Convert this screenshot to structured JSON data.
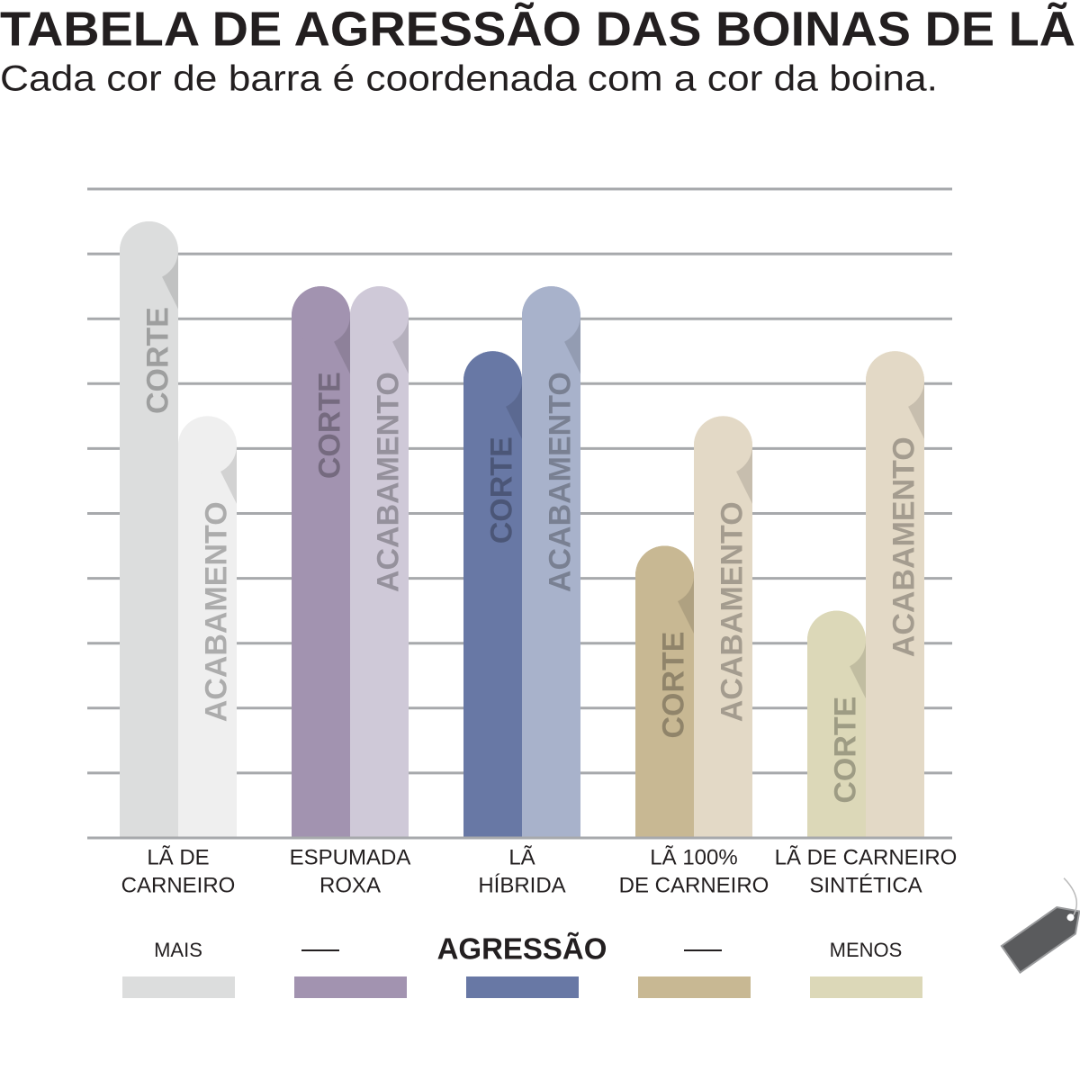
{
  "chart_data": {
    "type": "bar",
    "title": "TABELA DE AGRESSÃO DAS BOINAS DE LÃ",
    "subtitle": "Cada cor de barra é coordenada com a cor da boina.",
    "categories": [
      [
        "LÃ DE",
        "CARNEIRO"
      ],
      [
        "ESPUMADA",
        "ROXA"
      ],
      [
        "LÃ",
        "HÍBRIDA"
      ],
      [
        "LÃ 100%",
        "DE CARNEIRO"
      ],
      [
        "LÃ DE CARNEIRO",
        "SINTÉTICA"
      ]
    ],
    "series": [
      {
        "name": "CORTE",
        "colors": [
          "#dcdddd",
          "#a293b0",
          "#6878a5",
          "#c8b893",
          "#dcd8b8"
        ],
        "values": [
          9.5,
          8.5,
          7.5,
          4.5,
          3.5
        ]
      },
      {
        "name": "ACABAMENTO",
        "colors": [
          "#efefef",
          "#cfc9d8",
          "#a8b2cb",
          "#e3d9c6",
          "#e3d9c6"
        ],
        "values": [
          6.5,
          8.5,
          8.5,
          6.5,
          7.5
        ]
      }
    ],
    "ylim": [
      0,
      10
    ],
    "yticks": [
      0,
      1,
      2,
      3,
      4,
      5,
      6,
      7,
      8,
      9,
      10
    ],
    "grid": true,
    "scale": {
      "low_label": "MAIS",
      "title": "AGRESSÃO",
      "high_label": "MENOS"
    }
  }
}
